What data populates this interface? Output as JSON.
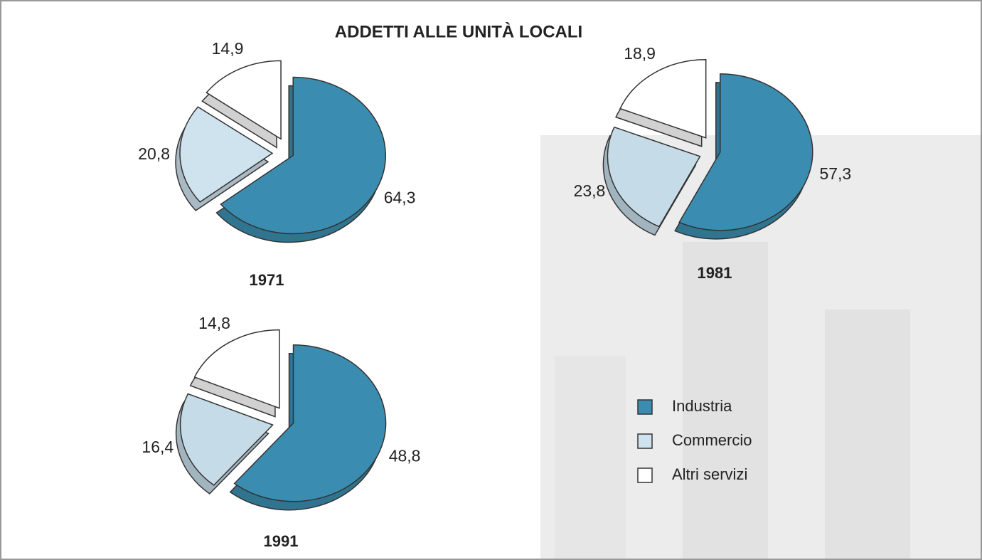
{
  "title": "ADDETTI ALLE UNITÀ LOCALI",
  "chart_data": [
    {
      "type": "pie",
      "title": "1971",
      "categories": [
        "Industria",
        "Commercio",
        "Altri servizi"
      ],
      "values": [
        64.3,
        20.8,
        14.9
      ],
      "value_labels": [
        "64,3",
        "20,8",
        "14,9"
      ],
      "colors": [
        "#3a8db0",
        "#cfe3ef",
        "#ffffff"
      ]
    },
    {
      "type": "pie",
      "title": "1981",
      "categories": [
        "Industria",
        "Commercio",
        "Altri servizi"
      ],
      "values": [
        57.3,
        23.8,
        18.9
      ],
      "value_labels": [
        "57,3",
        "23,8",
        "18,9"
      ],
      "colors": [
        "#3a8db0",
        "#c6dbe8",
        "#ffffff"
      ]
    },
    {
      "type": "pie",
      "title": "1991",
      "categories": [
        "Industria",
        "Commercio",
        "Altri servizi"
      ],
      "values": [
        48.8,
        16.4,
        14.8
      ],
      "value_labels": [
        "48,8",
        "16,4",
        "14,8"
      ],
      "colors": [
        "#3a8db0",
        "#c6dbe8",
        "#ffffff"
      ]
    }
  ]
}
